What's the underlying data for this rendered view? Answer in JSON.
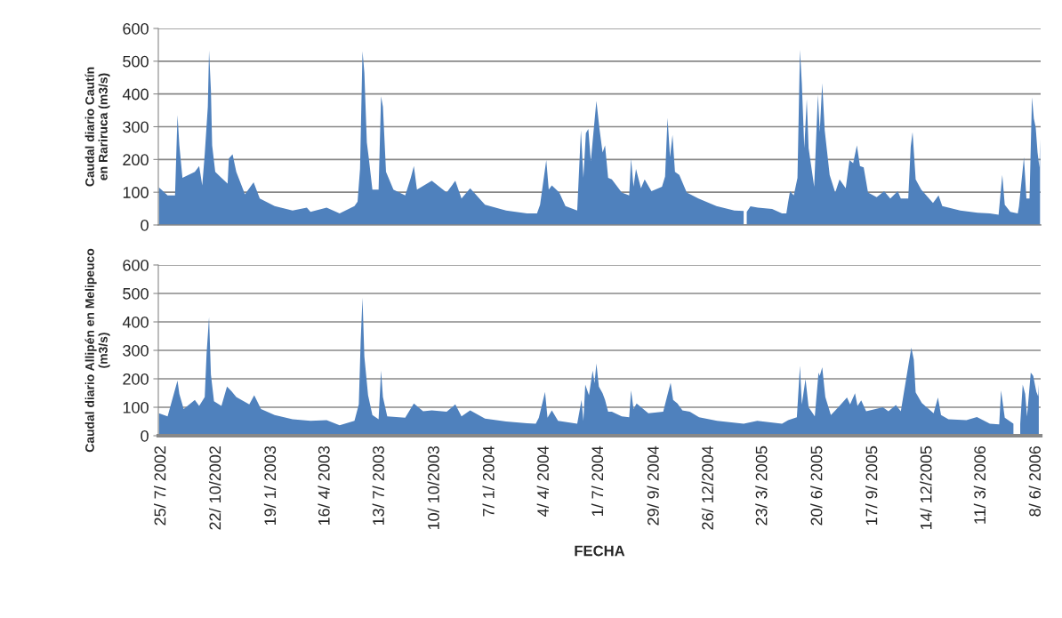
{
  "chart_data": [
    {
      "type": "area",
      "ylabel": "Caudal diario Cautín\nen Rariruca (m3/s)",
      "ylim": [
        0,
        600
      ],
      "yticks": [
        0,
        100,
        200,
        300,
        400,
        500,
        600
      ],
      "xlim": [
        "2002-07-20",
        "2006-06-15"
      ],
      "grid": "y",
      "tick_labels": "y",
      "series": [
        {
          "color": "#4f81bd",
          "x": [
            "2002-07-21",
            "2002-08-04",
            "2002-08-16",
            "2002-08-20",
            "2002-08-23",
            "2002-08-28",
            "2002-09-17",
            "2002-09-24",
            "2002-09-29",
            "2002-10-03",
            "2002-10-08",
            "2002-10-10",
            "2002-10-13",
            "2002-10-15",
            "2002-10-20",
            "2002-10-30",
            "2002-11-09",
            "2002-11-11",
            "2002-11-17",
            "2002-11-23",
            "2002-12-07",
            "2002-12-21",
            "2002-12-31",
            "2003-01-24",
            "2003-02-22",
            "2003-03-17",
            "2003-03-23",
            "2003-04-18",
            "2003-05-09",
            "2003-06-02",
            "2003-06-07",
            "2003-06-11",
            "2003-06-15",
            "2003-06-18",
            "2003-06-22",
            "2003-06-25",
            "2003-07-01",
            "2003-07-11",
            "2003-07-15",
            "2003-07-18",
            "2003-07-23",
            "2003-08-04",
            "2003-08-23",
            "2003-09-01",
            "2003-09-06",
            "2003-09-11",
            "2003-10-05",
            "2003-10-29",
            "2003-11-12",
            "2003-11-22",
            "2003-12-06",
            "2003-12-30",
            "2004-02-02",
            "2004-03-07",
            "2004-03-23",
            "2004-03-28",
            "2004-04-07",
            "2004-04-11",
            "2004-04-16",
            "2004-04-28",
            "2004-05-08",
            "2004-05-27",
            "2004-06-02",
            "2004-06-06",
            "2004-06-10",
            "2004-06-14",
            "2004-06-18",
            "2004-06-21",
            "2004-06-27",
            "2004-07-02",
            "2004-07-07",
            "2004-07-11",
            "2004-07-16",
            "2004-07-22",
            "2004-08-07",
            "2004-08-19",
            "2004-08-22",
            "2004-08-26",
            "2004-08-30",
            "2004-09-07",
            "2004-09-13",
            "2004-09-24",
            "2004-10-11",
            "2004-10-16",
            "2004-10-20",
            "2004-10-24",
            "2004-10-28",
            "2004-11-01",
            "2004-11-08",
            "2004-11-20",
            "2004-12-09",
            "2005-01-07",
            "2005-02-05",
            "2005-02-20",
            "2005-02-23",
            "2005-02-25",
            "2005-03-03",
            "2005-03-15",
            "2005-04-07",
            "2005-04-23",
            "2005-04-30",
            "2005-05-03",
            "2005-05-06",
            "2005-05-12",
            "2005-05-18",
            "2005-05-22",
            "2005-05-25",
            "2005-05-29",
            "2005-06-02",
            "2005-06-05",
            "2005-06-14",
            "2005-06-20",
            "2005-06-23",
            "2005-06-27",
            "2005-07-01",
            "2005-07-09",
            "2005-07-18",
            "2005-07-25",
            "2005-08-04",
            "2005-08-10",
            "2005-08-16",
            "2005-08-22",
            "2005-08-27",
            "2005-09-02",
            "2005-09-09",
            "2005-09-23",
            "2005-10-05",
            "2005-10-15",
            "2005-10-27",
            "2005-11-01",
            "2005-11-13",
            "2005-11-17",
            "2005-11-20",
            "2005-11-25",
            "2005-12-04",
            "2005-12-23",
            "2006-01-01",
            "2006-01-07",
            "2006-02-05",
            "2006-03-05",
            "2006-03-25",
            "2006-04-08",
            "2006-04-14",
            "2006-04-18",
            "2006-04-27",
            "2006-05-09",
            "2006-05-11",
            "2006-05-19",
            "2006-05-23",
            "2006-05-28",
            "2006-06-01",
            "2006-06-04",
            "2006-06-07",
            "2006-06-10",
            "2006-06-13",
            "2006-06-14"
          ],
          "values": [
            115,
            90,
            90,
            336,
            243,
            144,
            162,
            180,
            121,
            216,
            361,
            533,
            411,
            243,
            162,
            144,
            126,
            203,
            216,
            162,
            94,
            130,
            81,
            58,
            44,
            53,
            40,
            53,
            35,
            58,
            71,
            171,
            531,
            465,
            252,
            207,
            108,
            108,
            393,
            361,
            162,
            108,
            90,
            144,
            180,
            108,
            135,
            99,
            135,
            81,
            112,
            62,
            44,
            35,
            35,
            62,
            198,
            108,
            121,
            99,
            58,
            44,
            289,
            144,
            280,
            293,
            194,
            257,
            379,
            293,
            221,
            243,
            144,
            139,
            99,
            90,
            203,
            117,
            171,
            112,
            139,
            103,
            117,
            148,
            327,
            207,
            275,
            162,
            153,
            99,
            81,
            58,
            44,
            43,
            null,
            40,
            57,
            53,
            49,
            35,
            35,
            71,
            103,
            90,
            144,
            535,
            433,
            234,
            384,
            234,
            117,
            398,
            284,
            433,
            289,
            153,
            99,
            139,
            112,
            198,
            189,
            243,
            180,
            176,
            99,
            85,
            103,
            81,
            103,
            81,
            81,
            239,
            284,
            139,
            108,
            67,
            90,
            58,
            44,
            37,
            35,
            31,
            153,
            62,
            40,
            35,
            58,
            207,
            81,
            81,
            390,
            325,
            298,
            221,
            176,
            262
          ]
        }
      ]
    },
    {
      "type": "area",
      "ylabel": "Caudal diario Allipén en Melipeuco\n(m3/s)",
      "xlabel": "FECHA",
      "ylim": [
        0,
        600
      ],
      "yticks": [
        0,
        100,
        200,
        300,
        400,
        500,
        600
      ],
      "xlim": [
        "2002-07-20",
        "2006-06-15"
      ],
      "xticks": [
        {
          "value": "2002-07-25",
          "label": "25/ 7/ 2002"
        },
        {
          "value": "2002-10-22",
          "label": "22/ 10/2002"
        },
        {
          "value": "2003-01-19",
          "label": "19/ 1/ 2003"
        },
        {
          "value": "2003-04-16",
          "label": "16/ 4/ 2003"
        },
        {
          "value": "2003-07-13",
          "label": "13/ 7/ 2003"
        },
        {
          "value": "2003-10-10",
          "label": "10/ 10/2003"
        },
        {
          "value": "2004-01-07",
          "label": "7/ 1/ 2004"
        },
        {
          "value": "2004-04-04",
          "label": "4/ 4/ 2004"
        },
        {
          "value": "2004-07-01",
          "label": "1/ 7/ 2004"
        },
        {
          "value": "2004-09-29",
          "label": "29/ 9/ 2004"
        },
        {
          "value": "2004-12-26",
          "label": "26/ 12/2004"
        },
        {
          "value": "2005-03-23",
          "label": "23/ 3/ 2005"
        },
        {
          "value": "2005-06-20",
          "label": "20/ 6/ 2005"
        },
        {
          "value": "2005-09-17",
          "label": "17/ 9/ 2005"
        },
        {
          "value": "2005-12-14",
          "label": "14/ 12/2005"
        },
        {
          "value": "2006-03-11",
          "label": "11/ 3/ 2006"
        },
        {
          "value": "2006-06-08",
          "label": "8/ 6/ 2006"
        }
      ],
      "grid": "y",
      "series": [
        {
          "color": "#4f81bd",
          "x": [
            "2002-07-21",
            "2002-08-04",
            "2002-08-20",
            "2002-08-23",
            "2002-08-30",
            "2002-09-17",
            "2002-09-24",
            "2002-10-03",
            "2002-10-06",
            "2002-10-10",
            "2002-10-13",
            "2002-10-18",
            "2002-10-30",
            "2002-11-08",
            "2002-11-15",
            "2002-11-23",
            "2002-12-14",
            "2002-12-22",
            "2003-01-02",
            "2003-01-24",
            "2003-02-22",
            "2003-03-23",
            "2003-04-18",
            "2003-05-09",
            "2003-06-02",
            "2003-06-09",
            "2003-06-12",
            "2003-06-15",
            "2003-06-18",
            "2003-06-24",
            "2003-07-01",
            "2003-07-11",
            "2003-07-15",
            "2003-07-18",
            "2003-07-25",
            "2003-08-23",
            "2003-09-06",
            "2003-09-21",
            "2003-10-05",
            "2003-10-29",
            "2003-11-12",
            "2003-11-22",
            "2003-12-06",
            "2003-12-30",
            "2004-02-02",
            "2004-03-07",
            "2004-03-21",
            "2004-03-26",
            "2004-04-05",
            "2004-04-09",
            "2004-04-16",
            "2004-04-26",
            "2004-05-27",
            "2004-06-03",
            "2004-06-06",
            "2004-06-09",
            "2004-06-15",
            "2004-06-21",
            "2004-06-24",
            "2004-06-27",
            "2004-07-01",
            "2004-07-07",
            "2004-07-11",
            "2004-07-16",
            "2004-07-22",
            "2004-08-07",
            "2004-08-19",
            "2004-08-22",
            "2004-08-26",
            "2004-08-31",
            "2004-09-19",
            "2004-10-13",
            "2004-10-19",
            "2004-10-25",
            "2004-10-29",
            "2004-11-05",
            "2004-11-13",
            "2004-11-25",
            "2004-12-10",
            "2005-01-08",
            "2005-02-20",
            "2005-03-14",
            "2005-04-23",
            "2005-05-03",
            "2005-05-17",
            "2005-05-22",
            "2005-05-25",
            "2005-05-31",
            "2005-06-05",
            "2005-06-15",
            "2005-06-21",
            "2005-06-23",
            "2005-06-27",
            "2005-07-02",
            "2005-07-11",
            "2005-07-23",
            "2005-08-06",
            "2005-08-11",
            "2005-08-19",
            "2005-08-23",
            "2005-08-29",
            "2005-09-06",
            "2005-10-03",
            "2005-10-12",
            "2005-10-24",
            "2005-11-01",
            "2005-11-12",
            "2005-11-18",
            "2005-11-22",
            "2005-11-25",
            "2005-12-05",
            "2005-12-24",
            "2005-12-31",
            "2006-01-05",
            "2006-01-17",
            "2006-02-15",
            "2006-03-04",
            "2006-03-25",
            "2006-04-09",
            "2006-04-12",
            "2006-04-18",
            "2006-05-02",
            "2006-05-05",
            "2006-05-13",
            "2006-05-17",
            "2006-05-21",
            "2006-05-24",
            "2006-05-30",
            "2006-06-03",
            "2006-06-08",
            "2006-06-11",
            "2006-06-12"
          ],
          "values": [
            79,
            68,
            194,
            147,
            94,
            126,
            105,
            136,
            288,
            417,
            215,
            121,
            105,
            173,
            157,
            136,
            110,
            142,
            94,
            73,
            58,
            52,
            55,
            37,
            52,
            110,
            330,
            485,
            278,
            142,
            73,
            58,
            229,
            136,
            68,
            63,
            113,
            86,
            89,
            84,
            110,
            68,
            89,
            60,
            50,
            44,
            42,
            63,
            154,
            63,
            89,
            52,
            42,
            126,
            52,
            180,
            142,
            229,
            184,
            254,
            173,
            149,
            126,
            84,
            84,
            68,
            65,
            159,
            94,
            113,
            79,
            84,
            136,
            186,
            126,
            113,
            89,
            84,
            65,
            52,
            42,
            52,
            42,
            55,
            65,
            246,
            110,
            199,
            100,
            68,
            222,
            210,
            241,
            136,
            73,
            100,
            134,
            110,
            149,
            105,
            124,
            86,
            100,
            86,
            108,
            86,
            231,
            309,
            267,
            152,
            115,
            79,
            134,
            73,
            58,
            55,
            66,
            42,
            40,
            159,
            63,
            42,
            null,
            42,
            180,
            147,
            68,
            222,
            210,
            155,
            138,
            180
          ]
        }
      ]
    }
  ]
}
